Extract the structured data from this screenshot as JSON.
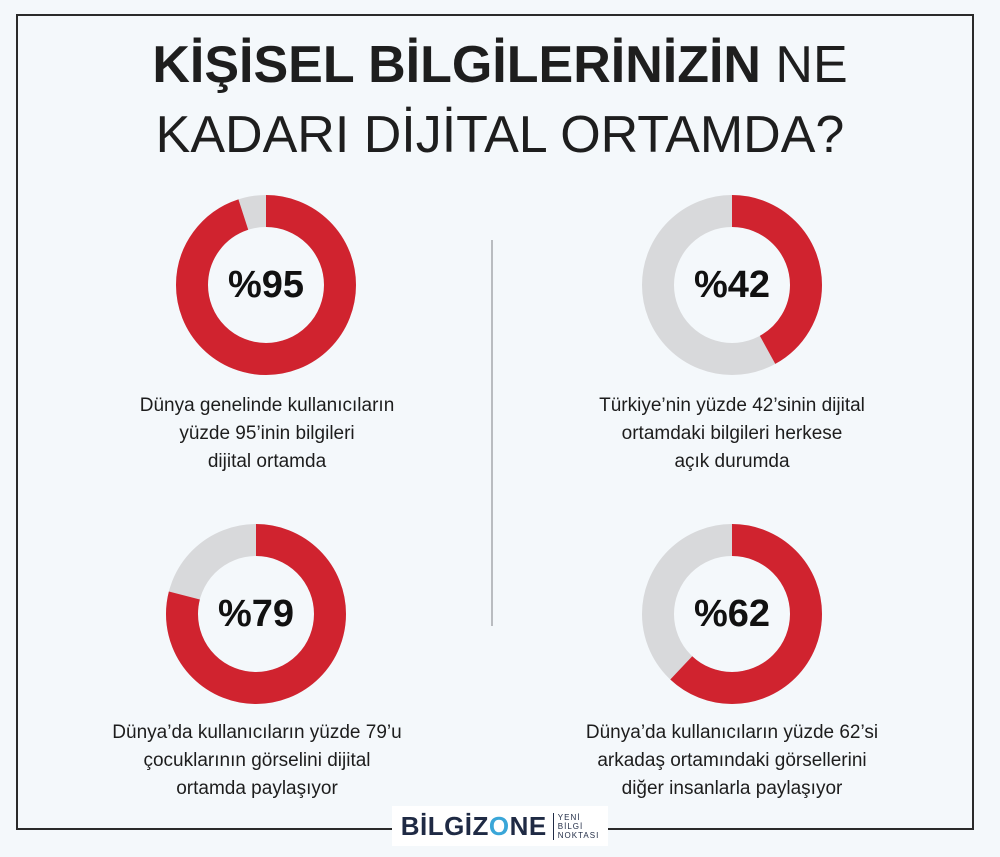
{
  "title": {
    "line1_bold": "KİŞİSEL BİLGİLERİNİZİN",
    "line1_regular": "NE",
    "line2": "KADARI DİJİTAL ORTAMDA?"
  },
  "colors": {
    "accent": "#d0232f",
    "remainder": "#d8d9db",
    "text": "#1e1e1e"
  },
  "chart_data": [
    {
      "type": "pie",
      "label": "%95",
      "values": [
        95,
        5
      ],
      "caption": [
        "Dünya genelinde kullanıcıların",
        "yüzde 95’inin bilgileri",
        "dijital ortamda"
      ]
    },
    {
      "type": "pie",
      "label": "%42",
      "values": [
        42,
        58
      ],
      "caption": [
        "Türkiye’nin yüzde 42’sinin dijital",
        "ortamdaki bilgileri herkese",
        "açık durumda"
      ]
    },
    {
      "type": "pie",
      "label": "%79",
      "values": [
        79,
        21
      ],
      "caption": [
        "Dünya’da kullanıcıların yüzde 79’u",
        "çocuklarının görselini dijital",
        "ortamda paylaşıyor"
      ]
    },
    {
      "type": "pie",
      "label": "%62",
      "values": [
        62,
        38
      ],
      "caption": [
        "Dünya’da kullanıcıların yüzde 62’si",
        "arkadaş ortamındaki görsellerini",
        "diğer insanlarla paylaşıyor"
      ]
    }
  ],
  "logo": {
    "word_start": "BİLGİZ",
    "word_o": "O",
    "word_end": "NE",
    "sub": [
      "YENİ",
      "BİLGİ",
      "NOKTASI"
    ]
  }
}
